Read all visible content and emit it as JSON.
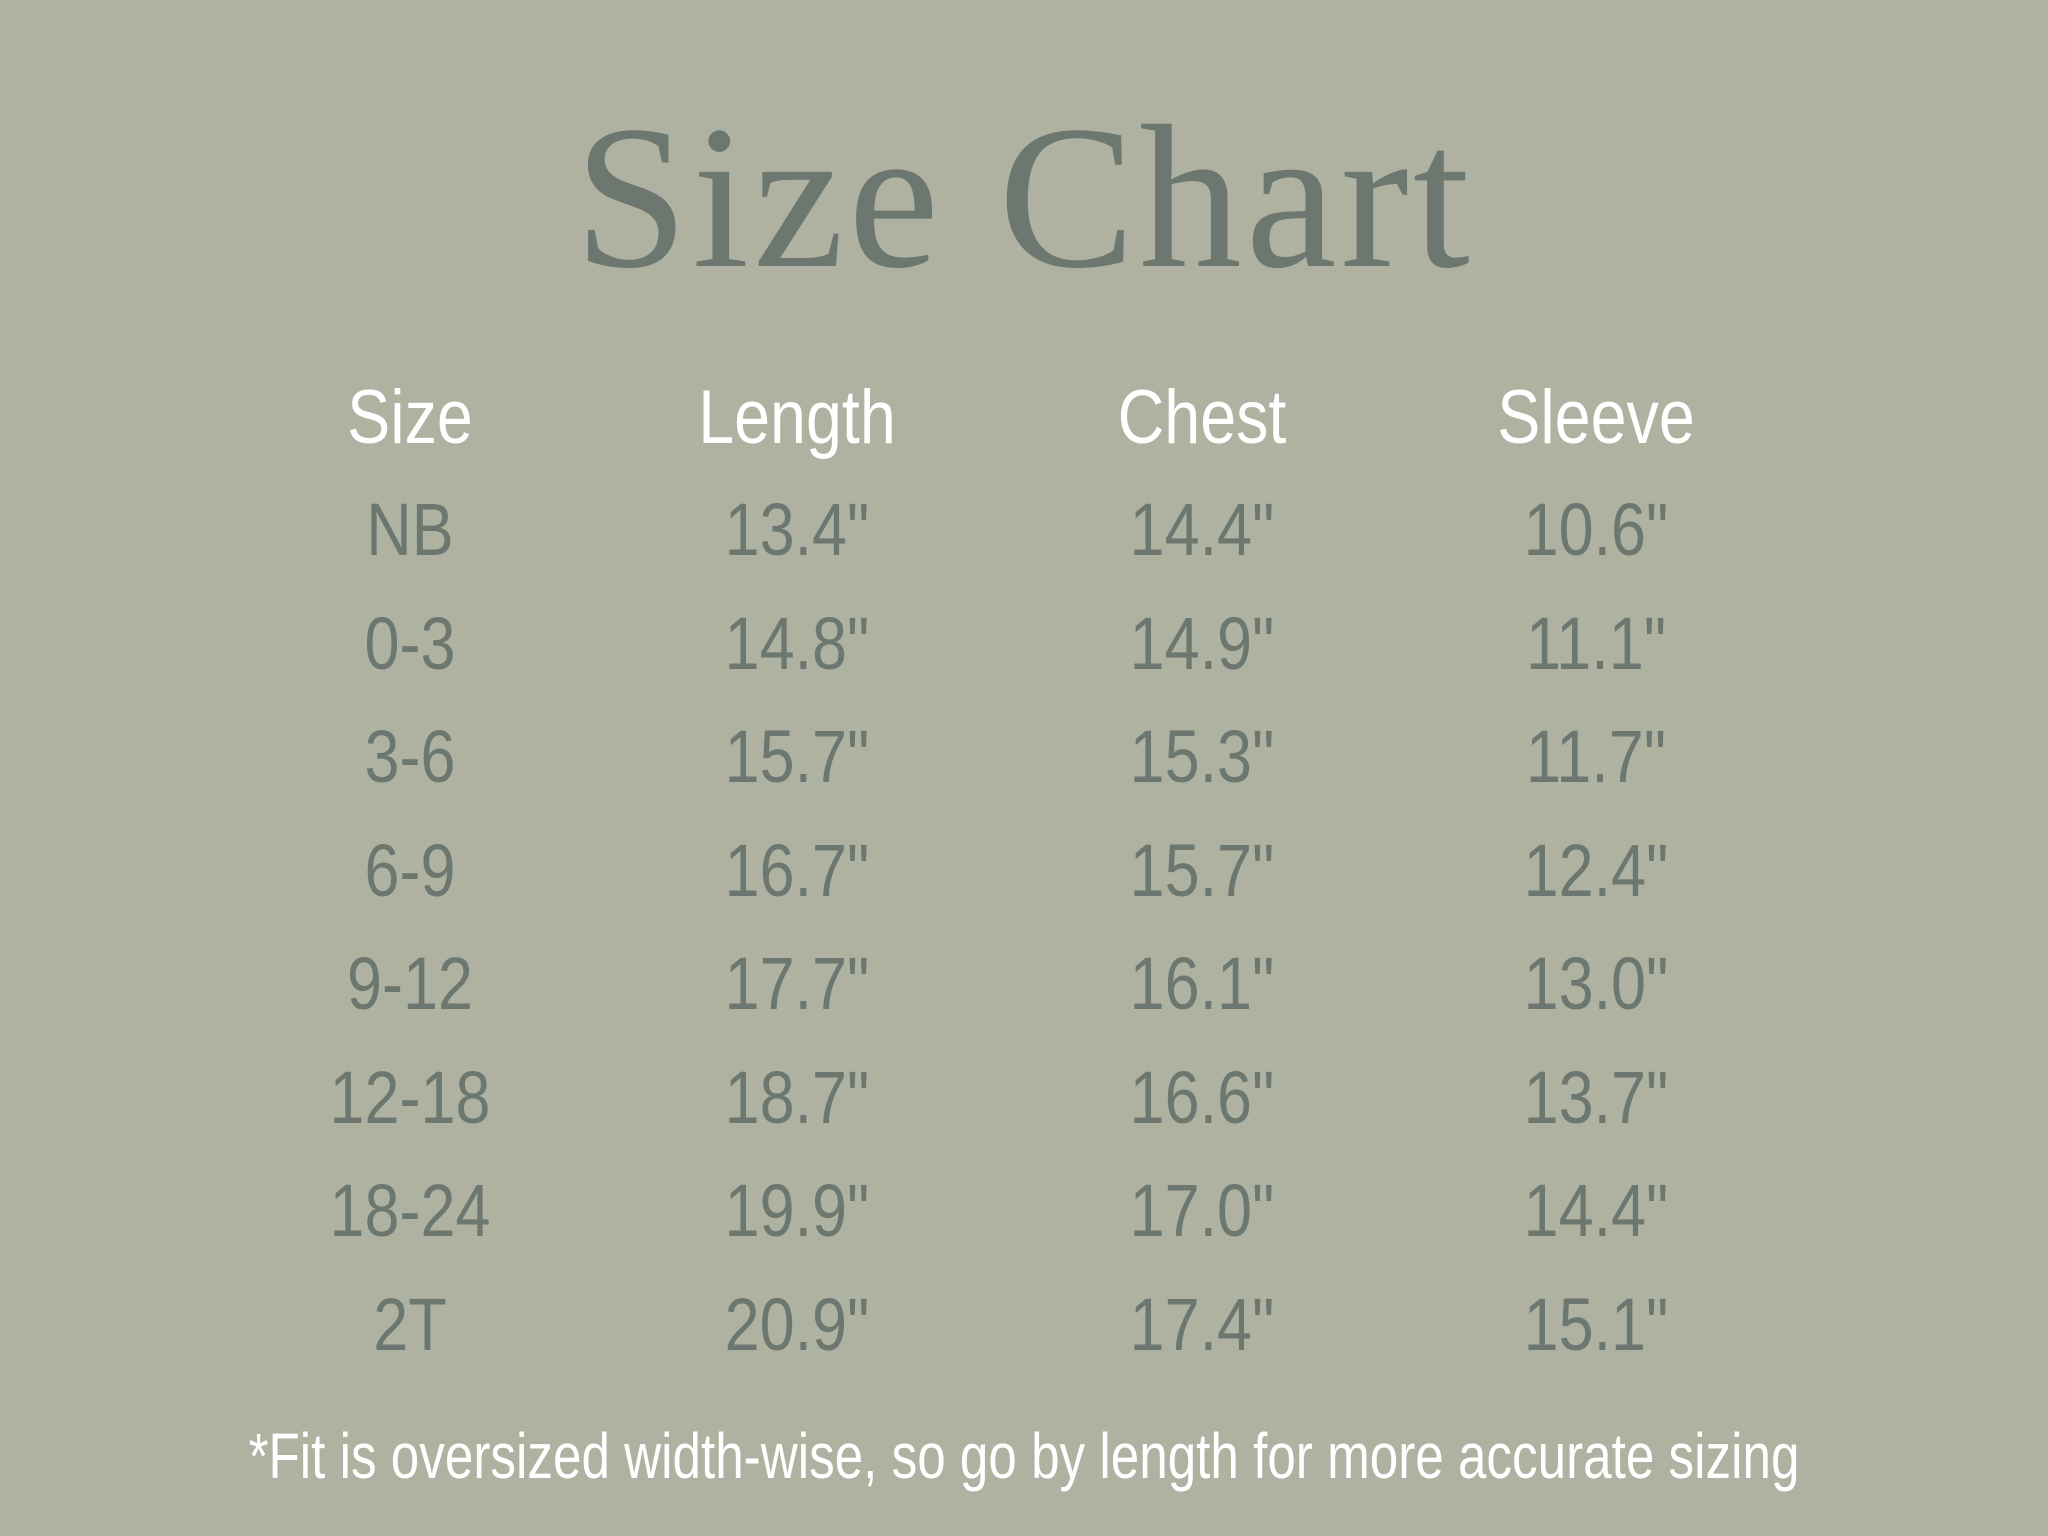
{
  "title": "Size Chart",
  "table": {
    "headers": [
      "Size",
      "Length",
      "Chest",
      "Sleeve"
    ],
    "rows": [
      [
        "NB",
        "13.4\"",
        "14.4\"",
        "10.6\""
      ],
      [
        "0-3",
        "14.8\"",
        "14.9\"",
        "11.1\""
      ],
      [
        "3-6",
        "15.7\"",
        "15.3\"",
        "11.7\""
      ],
      [
        "6-9",
        "16.7\"",
        "15.7\"",
        "12.4\""
      ],
      [
        "9-12",
        "17.7\"",
        "16.1\"",
        "13.0\""
      ],
      [
        "12-18",
        "18.7\"",
        "16.6\"",
        "13.7\""
      ],
      [
        "18-24",
        "19.9\"",
        "17.0\"",
        "14.4\""
      ],
      [
        "2T",
        "20.9\"",
        "17.4\"",
        "15.1\""
      ]
    ]
  },
  "footnote": "*Fit is oversized width-wise, so go by length for more accurate sizing",
  "colors": {
    "background": "#afb2a1",
    "text": "#6c7770",
    "header": "#ffffff"
  }
}
